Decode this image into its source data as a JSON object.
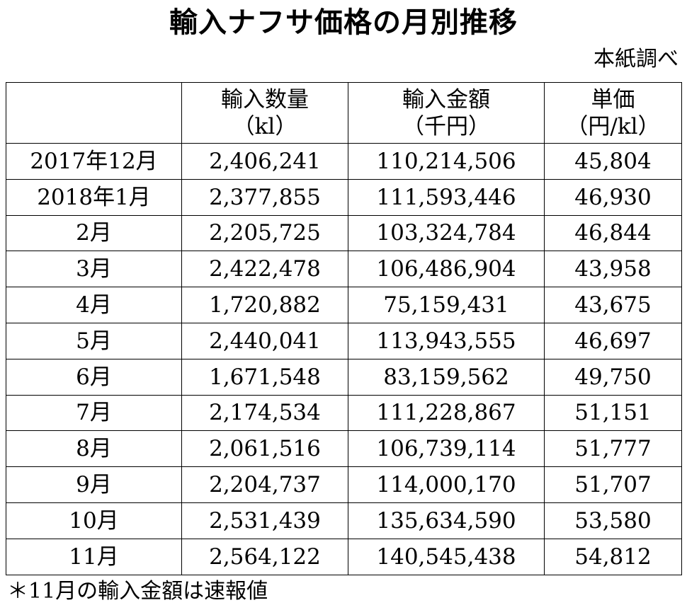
{
  "title": "輸入ナフサ価格の月別推移",
  "source": "本紙調べ",
  "headers": [
    {
      "line1": "",
      "line2": ""
    },
    {
      "line1": "輸入数量",
      "line2": "（kl）"
    },
    {
      "line1": "輸入金額",
      "line2": "（千円）"
    },
    {
      "line1": "単価",
      "line2": "（円/kl）"
    }
  ],
  "rows": [
    {
      "month": "2017年12月",
      "quantity": "2,406,241",
      "amount": "110,214,506",
      "unit_price": "45,804"
    },
    {
      "month": "2018年1月",
      "quantity": "2,377,855",
      "amount": "111,593,446",
      "unit_price": "46,930"
    },
    {
      "month": "2月",
      "quantity": "2,205,725",
      "amount": "103,324,784",
      "unit_price": "46,844"
    },
    {
      "month": "3月",
      "quantity": "2,422,478",
      "amount": "106,486,904",
      "unit_price": "43,958"
    },
    {
      "month": "4月",
      "quantity": "1,720,882",
      "amount": "75,159,431",
      "unit_price": "43,675"
    },
    {
      "month": "5月",
      "quantity": "2,440,041",
      "amount": "113,943,555",
      "unit_price": "46,697"
    },
    {
      "month": "6月",
      "quantity": "1,671,548",
      "amount": "83,159,562",
      "unit_price": "49,750"
    },
    {
      "month": "7月",
      "quantity": "2,174,534",
      "amount": "111,228,867",
      "unit_price": "51,151"
    },
    {
      "month": "8月",
      "quantity": "2,061,516",
      "amount": "106,739,114",
      "unit_price": "51,777"
    },
    {
      "month": "9月",
      "quantity": "2,204,737",
      "amount": "114,000,170",
      "unit_price": "51,707"
    },
    {
      "month": "10月",
      "quantity": "2,531,439",
      "amount": "135,634,590",
      "unit_price": "53,580"
    },
    {
      "month": "11月",
      "quantity": "2,564,122",
      "amount": "140,545,438",
      "unit_price": "54,812"
    }
  ],
  "footnote": "＊11月の輸入金額は速報値"
}
